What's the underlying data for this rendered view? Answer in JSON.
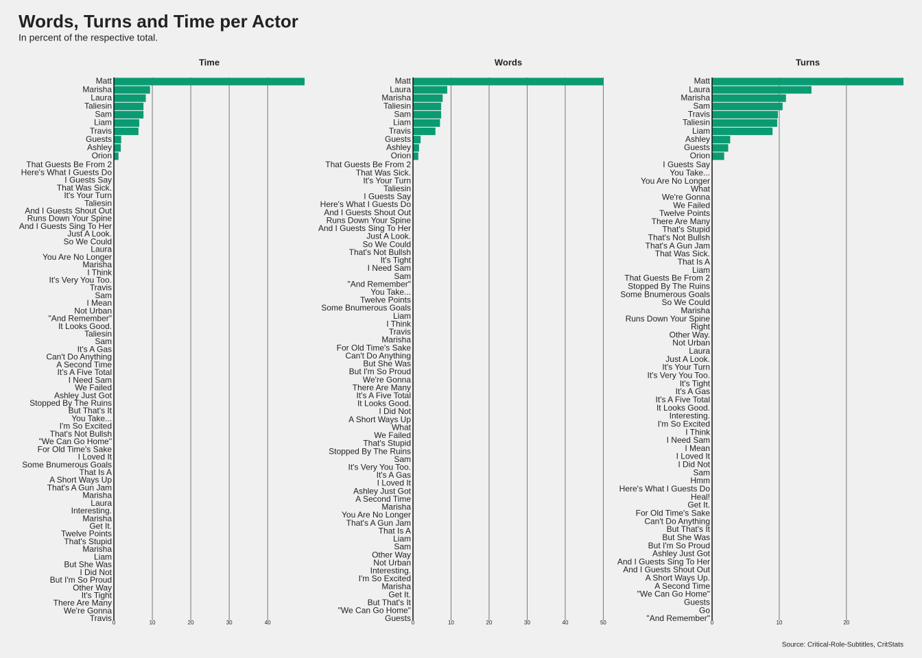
{
  "title": "Words, Turns and Time per Actor",
  "subtitle": "In percent of the respective total.",
  "source": "Source: Critical-Role-Subtitles, CritStats",
  "chart_data": [
    {
      "type": "barh",
      "title": "Time",
      "color": "#0a9b72",
      "xlim": [
        0,
        49.6
      ],
      "xticks": [
        0,
        10,
        20,
        30,
        40
      ],
      "grid": true,
      "categories": [
        "Matt",
        "Marisha",
        "Laura",
        "Taliesin",
        "Sam",
        "Liam",
        "Travis",
        "Guests",
        "Ashley",
        "Orion",
        "That Guests Be From 2",
        "Here's What I Guests Do",
        "I Guests Say",
        "That Was Sick.",
        "It's Your Turn",
        "Taliesin",
        "And I Guests Shout Out",
        "Runs Down Your Spine",
        "And I Guests Sing To Her",
        "Just A Look.",
        "So We Could",
        "Laura",
        "You Are No Longer",
        "Marisha",
        "I Think",
        "It's Very You Too.",
        "Travis",
        "Sam",
        "I Mean",
        "Not Urban",
        "\"And Remember\"",
        "It Looks Good.",
        "Taliesin",
        "Sam",
        "It's A Gas",
        "Can't Do Anything",
        "A Second Time",
        "It's A Five Total",
        "I Need Sam",
        "We Failed",
        "Ashley Just Got",
        "Stopped By The Ruins",
        "But That's It",
        "You Take...",
        "I'm So Excited",
        "That's Not Bullsh",
        "\"We Can Go Home\"",
        "For Old Time's Sake",
        "I Loved It",
        "Some Bnumerous Goals",
        "That Is A",
        "A Short Ways Up",
        "That's A Gun Jam",
        "Marisha",
        "Laura",
        "Interesting.",
        "Marisha",
        "Get It.",
        "Twelve Points",
        "That's Stupid",
        "Marisha",
        "Liam",
        "But She Was",
        "I Did Not",
        "But I'm So Proud",
        "Other Way",
        "It's Tight",
        "There Are Many",
        "We're Gonna",
        "Travis"
      ],
      "values": [
        49.6,
        9.4,
        8.3,
        7.7,
        7.7,
        6.6,
        6.4,
        1.9,
        1.8,
        1.2,
        0,
        0,
        0,
        0,
        0,
        0,
        0,
        0,
        0,
        0,
        0,
        0,
        0,
        0,
        0,
        0,
        0,
        0,
        0,
        0,
        0,
        0,
        0,
        0,
        0,
        0,
        0,
        0,
        0,
        0,
        0,
        0,
        0,
        0,
        0,
        0,
        0,
        0,
        0,
        0,
        0,
        0,
        0,
        0,
        0,
        0,
        0,
        0,
        0,
        0,
        0,
        0,
        0,
        0,
        0,
        0,
        0,
        0,
        0,
        0
      ]
    },
    {
      "type": "barh",
      "title": "Words",
      "color": "#0a9b72",
      "xlim": [
        0,
        50.1
      ],
      "xticks": [
        0,
        10,
        20,
        30,
        40,
        50
      ],
      "grid": true,
      "categories": [
        "Matt",
        "Laura",
        "Marisha",
        "Taliesin",
        "Sam",
        "Liam",
        "Travis",
        "Guests",
        "Ashley",
        "Orion",
        "That Guests Be From 2",
        "That Was Sick.",
        "It's Your Turn",
        "Taliesin",
        "I Guests Say",
        "Here's What I Guests Do",
        "And I Guests Shout Out",
        "Runs Down Your Spine",
        "And I Guests Sing To Her",
        "Just A Look.",
        "So We Could",
        "That's Not Bullsh",
        "It's Tight",
        "I Need Sam",
        "Sam",
        "\"And Remember\"",
        "You Take...",
        "Twelve Points",
        "Some Bnumerous Goals",
        "Liam",
        "I Think",
        "Travis",
        "Marisha",
        "For Old Time's Sake",
        "Can't Do Anything",
        "But She Was",
        "But I'm So Proud",
        "We're Gonna",
        "There Are Many",
        "It's A Five Total",
        "It Looks Good.",
        "I Did Not",
        "A Short Ways Up",
        "What",
        "We Failed",
        "That's Stupid",
        "Stopped By The Ruins",
        "Sam",
        "It's Very You Too.",
        "It's A Gas",
        "I Loved It",
        "Ashley Just Got",
        "A Second Time",
        "Marisha",
        "You Are No Longer",
        "That's A Gun Jam",
        "That Is A",
        "Liam",
        "Sam",
        "Other Way",
        "Not Urban",
        "Interesting.",
        "I'm So Excited",
        "Marisha",
        "Get It.",
        "But That's It",
        "\"We Can Go Home\"",
        "Guests"
      ],
      "values": [
        50.1,
        9.0,
        7.8,
        7.4,
        7.4,
        7.1,
        5.9,
        2.0,
        1.6,
        1.4,
        0,
        0,
        0,
        0,
        0,
        0,
        0,
        0,
        0,
        0,
        0,
        0,
        0,
        0,
        0,
        0,
        0,
        0,
        0,
        0,
        0,
        0,
        0,
        0,
        0,
        0,
        0,
        0,
        0,
        0,
        0,
        0,
        0,
        0,
        0,
        0,
        0,
        0,
        0,
        0,
        0,
        0,
        0,
        0,
        0,
        0,
        0,
        0,
        0,
        0,
        0,
        0,
        0,
        0,
        0,
        0,
        0,
        0
      ]
    },
    {
      "type": "barh",
      "title": "Turns",
      "color": "#0a9b72",
      "xlim": [
        0,
        28.5
      ],
      "xticks": [
        0,
        10,
        20
      ],
      "grid": true,
      "categories": [
        "Matt",
        "Laura",
        "Marisha",
        "Sam",
        "Travis",
        "Taliesin",
        "Liam",
        "Ashley",
        "Guests",
        "Orion",
        "I Guests Say",
        "You Take...",
        "You Are No Longer",
        "What",
        "We're Gonna",
        "We Failed",
        "Twelve Points",
        "There Are Many",
        "That's Stupid",
        "That's Not Bullsh",
        "That's A Gun Jam",
        "That Was Sick.",
        "That Is A",
        "Liam",
        "That Guests Be From 2",
        "Stopped By The Ruins",
        "Some Bnumerous Goals",
        "So We Could",
        "Marisha",
        "Runs Down Your Spine",
        "Right",
        "Other Way.",
        "Not Urban",
        "Laura",
        "Just A Look.",
        "It's Your Turn",
        "It's Very You Too.",
        "It's Tight",
        "It's A Gas",
        "It's A Five Total",
        "It Looks Good.",
        "Interesting.",
        "I'm So Excited",
        "I Think",
        "I Need Sam",
        "I Mean",
        "I Loved It",
        "I Did Not",
        "Sam",
        "Hmm",
        "Here's What I Guests Do",
        "Heal!",
        "Get It.",
        "For Old Time's Sake",
        "Can't Do Anything",
        "But That's It",
        "But She Was",
        "But I'm So Proud",
        "Ashley Just Got",
        "And I Guests Sing To Her",
        "And I Guests Shout Out",
        "A Short Ways Up.",
        "A Second Time",
        "\"We Can Go Home\"",
        "Guests",
        "Go",
        "\"And Remember\""
      ],
      "values": [
        28.5,
        14.8,
        11.0,
        10.5,
        9.8,
        9.7,
        9.0,
        2.7,
        2.4,
        1.8,
        0,
        0,
        0,
        0,
        0,
        0,
        0,
        0,
        0,
        0,
        0,
        0,
        0,
        0,
        0,
        0,
        0,
        0,
        0,
        0,
        0,
        0,
        0,
        0,
        0,
        0,
        0,
        0,
        0,
        0,
        0,
        0,
        0,
        0,
        0,
        0,
        0,
        0,
        0,
        0,
        0,
        0,
        0,
        0,
        0,
        0,
        0,
        0,
        0,
        0,
        0,
        0,
        0,
        0,
        0,
        0,
        0
      ]
    }
  ]
}
